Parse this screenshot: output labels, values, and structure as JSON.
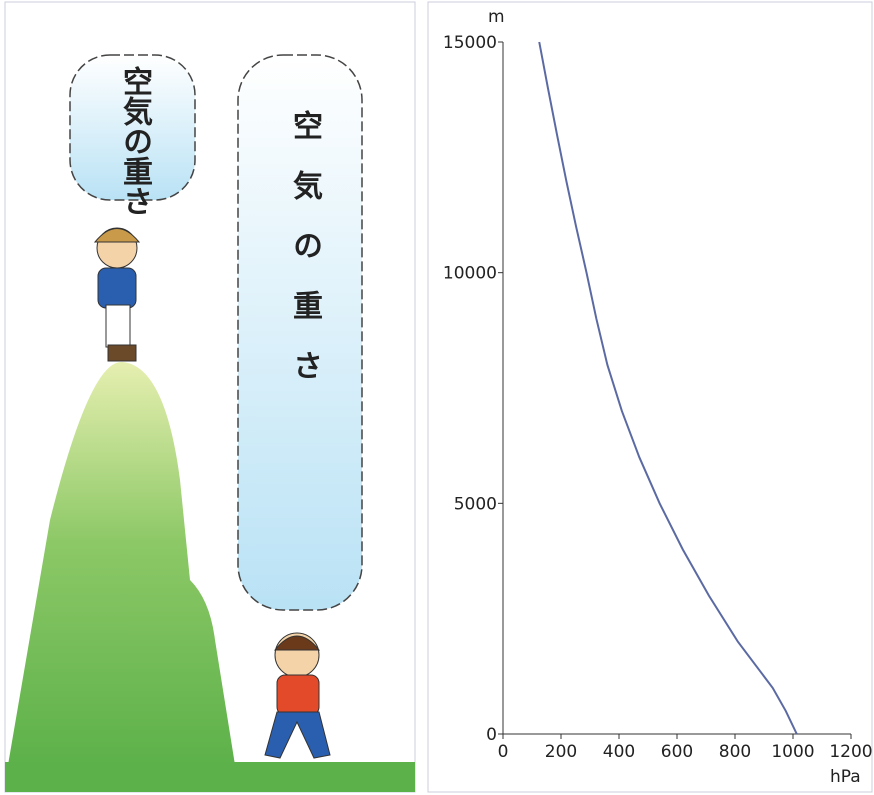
{
  "illustration": {
    "small_bubble": "空気の重さ",
    "large_bubble": "空気の重さ"
  },
  "chart_data": {
    "type": "line",
    "x_label": "hPa",
    "y_label": "m",
    "x": [
      1013,
      975,
      930,
      810,
      710,
      620,
      540,
      470,
      410,
      360,
      322,
      288,
      252,
      218,
      186,
      155,
      125
    ],
    "series": [
      {
        "color": "#5b6aa3",
        "values": [
          0,
          500,
          1000,
          2000,
          3000,
          4000,
          5000,
          6000,
          7000,
          8000,
          9000,
          10000,
          11000,
          12000,
          13000,
          14000,
          15000
        ]
      }
    ],
    "xlim": [
      0,
      1200
    ],
    "ylim": [
      0,
      15000
    ],
    "xticks": [
      0,
      200,
      400,
      600,
      800,
      1000,
      1200
    ],
    "yticks": [
      0,
      5000,
      10000,
      15000
    ]
  }
}
